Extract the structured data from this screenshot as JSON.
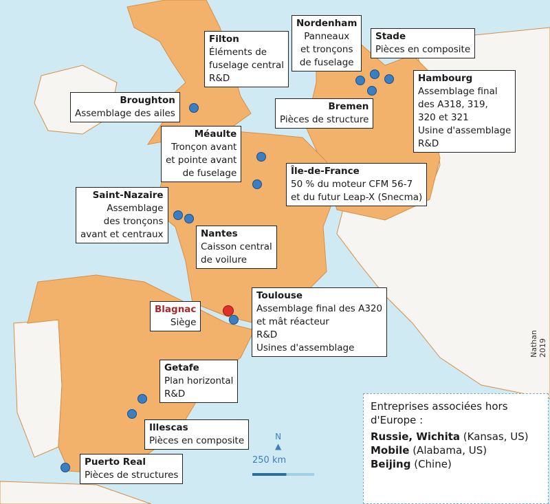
{
  "colors": {
    "sea": "#cfeaf3",
    "airbus_country": "#f2b26b",
    "other_land": "#f6f5f1",
    "site_dot": "#3b7fc2",
    "headquarters_dot": "#e0302a"
  },
  "sites": [
    {
      "name": "Filton",
      "lines": [
        "Éléments de",
        "fuselage central",
        "R&D"
      ]
    },
    {
      "name": "Broughton",
      "lines": [
        "Assemblage des ailes"
      ]
    },
    {
      "name": "Nordenham",
      "lines": [
        "Panneaux",
        "et tronçons",
        "de fuselage"
      ]
    },
    {
      "name": "Stade",
      "lines": [
        "Pièces en composite"
      ]
    },
    {
      "name": "Hambourg",
      "lines": [
        "Assemblage final",
        "des A318, 319,",
        "320 et 321",
        "Usine d'assemblage",
        "R&D"
      ]
    },
    {
      "name": "Bremen",
      "lines": [
        "Pièces de structure"
      ]
    },
    {
      "name": "Méaulte",
      "lines": [
        "Tronçon avant",
        "et pointe avant",
        "de fuselage"
      ]
    },
    {
      "name": "Île-de-France",
      "lines": [
        "50 % du moteur CFM 56-7",
        "et du futur Leap-X (Snecma)"
      ]
    },
    {
      "name": "Saint-Nazaire",
      "lines": [
        "Assemblage",
        "des tronçons",
        "avant et centraux"
      ]
    },
    {
      "name": "Nantes",
      "lines": [
        "Caisson central",
        "de voilure"
      ]
    },
    {
      "name": "Blagnac",
      "lines": [
        "Siège"
      ]
    },
    {
      "name": "Toulouse",
      "lines": [
        "Assemblage final des A320",
        "et mât réacteur",
        "R&D",
        "Usines d'assemblage"
      ]
    },
    {
      "name": "Getafe",
      "lines": [
        "Plan horizontal",
        "R&D"
      ]
    },
    {
      "name": "Illescas",
      "lines": [
        "Pièces en composite"
      ]
    },
    {
      "name": "Puerto Real",
      "lines": [
        "Pièces de structures"
      ]
    }
  ],
  "legend": {
    "title": "Entreprises associées hors d'Europe :",
    "items": [
      {
        "bold": "Russie, Wichita",
        "rest": " (Kansas, US)"
      },
      {
        "bold": "Mobile",
        "rest": " (Alabama, US)"
      },
      {
        "bold": "Beijing",
        "rest": " (Chine)"
      }
    ]
  },
  "north_label": "N",
  "scale_label": "250 km",
  "credit": "Nathan 2019"
}
